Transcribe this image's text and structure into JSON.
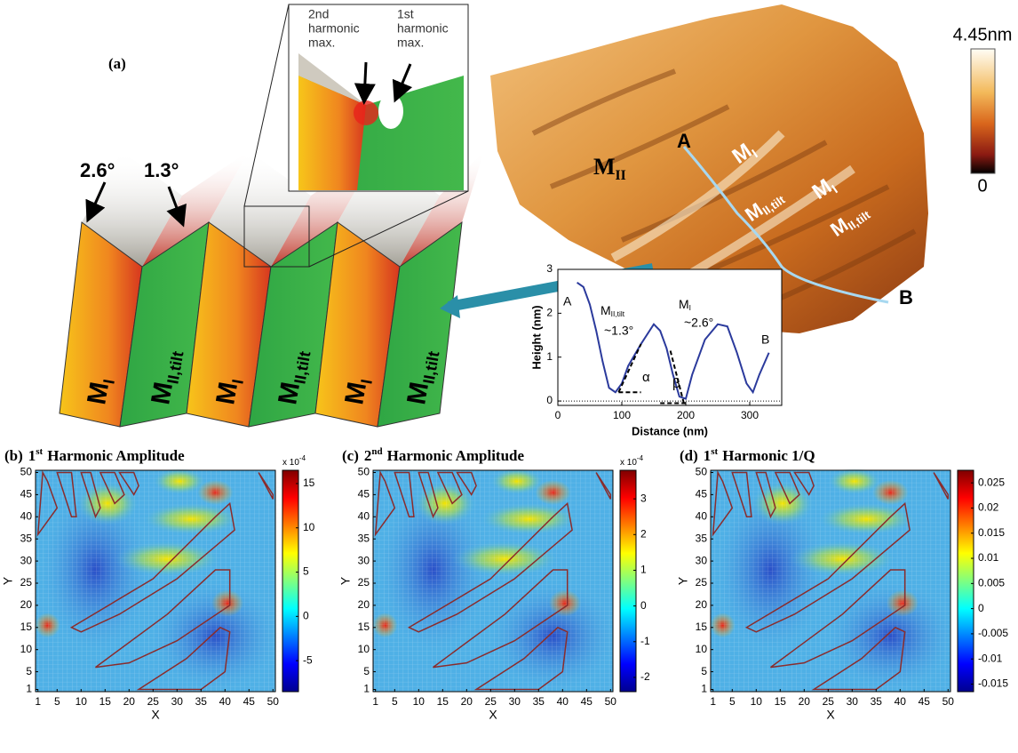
{
  "panel_a": {
    "label": "(a)",
    "angle_1": "2.6°",
    "angle_2": "1.3°",
    "harmonic_2": [
      "2nd",
      "harmonic",
      "max."
    ],
    "harmonic_1": [
      "1st",
      "harmonic",
      "max."
    ],
    "domains": [
      {
        "main": "M",
        "sub": "I"
      },
      {
        "main": "M",
        "sub": "II,tilt"
      },
      {
        "main": "M",
        "sub": "I"
      },
      {
        "main": "M",
        "sub": "II,tilt"
      },
      {
        "main": "M",
        "sub": "I"
      },
      {
        "main": "M",
        "sub": "II,tilt"
      }
    ]
  },
  "afm": {
    "colorbar_max": "4.45nm",
    "colorbar_min": "0",
    "point_a": "A",
    "point_b": "B",
    "labels": [
      {
        "main": "M",
        "sub": "II"
      },
      {
        "main": "M",
        "sub": "I"
      },
      {
        "main": "M",
        "sub": "II,tilt"
      },
      {
        "main": "M",
        "sub": "I"
      },
      {
        "main": "M",
        "sub": "II,tilt"
      }
    ]
  },
  "chart_data": [
    {
      "type": "line",
      "x_label": "Distance  (nm)",
      "y_label": "Height (nm)",
      "x": [
        30,
        40,
        50,
        60,
        70,
        80,
        90,
        100,
        110,
        130,
        150,
        160,
        170,
        180,
        190,
        200,
        210,
        230,
        250,
        265,
        280,
        295,
        305,
        315,
        330
      ],
      "series": [
        {
          "color": "#2b3a9c",
          "values": [
            2.7,
            2.6,
            2.2,
            1.6,
            0.9,
            0.3,
            0.2,
            0.4,
            0.8,
            1.3,
            1.75,
            1.6,
            1.2,
            0.6,
            0.1,
            0.05,
            0.6,
            1.4,
            1.75,
            1.7,
            1.1,
            0.4,
            0.2,
            0.6,
            1.1
          ]
        }
      ],
      "xlim": [
        0,
        350
      ],
      "ylim": [
        -0.1,
        3
      ],
      "xticks": [
        0,
        100,
        200,
        300
      ],
      "yticks": [
        0,
        1,
        2,
        3
      ],
      "annotations": {
        "start": "A",
        "end": "B",
        "tilt_label": {
          "main": "M",
          "sub": "II,tilt"
        },
        "tilt_angle": "~1.3°",
        "mi_label": {
          "main": "M",
          "sub": "I"
        },
        "mi_angle": "~2.6°",
        "alpha": "α",
        "beta": "β"
      }
    },
    {
      "type": "heatmap",
      "title": {
        "label": "(b)",
        "num": "1",
        "sup": "st",
        "text": "Harmonic Amplitude"
      },
      "x_label": "X",
      "y_label": "Y",
      "xlim": [
        0.5,
        50.5
      ],
      "ylim": [
        0.5,
        50.5
      ],
      "xticks": [
        1,
        5,
        10,
        15,
        20,
        25,
        30,
        35,
        40,
        45,
        50
      ],
      "yticks": [
        1,
        5,
        10,
        15,
        20,
        25,
        30,
        35,
        40,
        45,
        50
      ],
      "colorbar": {
        "exponent": {
          "base": "x 10",
          "sup": "-4"
        },
        "lim": [
          -8.5,
          16.5
        ],
        "ticks": [
          -5,
          0,
          5,
          10,
          15
        ]
      }
    },
    {
      "type": "heatmap",
      "title": {
        "label": "(c)",
        "num": "2",
        "sup": "nd",
        "text": "Harmonic Amplitude"
      },
      "x_label": "X",
      "y_label": "Y",
      "xlim": [
        0.5,
        50.5
      ],
      "ylim": [
        0.5,
        50.5
      ],
      "xticks": [
        1,
        5,
        10,
        15,
        20,
        25,
        30,
        35,
        40,
        45,
        50
      ],
      "yticks": [
        1,
        5,
        10,
        15,
        20,
        25,
        30,
        35,
        40,
        45,
        50
      ],
      "colorbar": {
        "exponent": {
          "base": "x 10",
          "sup": "-4"
        },
        "lim": [
          -2.4,
          3.8
        ],
        "ticks": [
          -2,
          -1,
          0,
          1,
          2,
          3
        ]
      }
    },
    {
      "type": "heatmap",
      "title": {
        "label": "(d)",
        "num": "1",
        "sup": "st",
        "text": "Harmonic 1/Q"
      },
      "x_label": "X",
      "y_label": "Y",
      "xlim": [
        0.5,
        50.5
      ],
      "ylim": [
        0.5,
        50.5
      ],
      "xticks": [
        1,
        5,
        10,
        15,
        20,
        25,
        30,
        35,
        40,
        45,
        50
      ],
      "yticks": [
        1,
        5,
        10,
        15,
        20,
        25,
        30,
        35,
        40,
        45,
        50
      ],
      "colorbar": {
        "lim": [
          -0.0165,
          0.0275
        ],
        "ticks": [
          -0.015,
          -0.01,
          -0.005,
          0,
          0.005,
          0.01,
          0.015,
          0.02,
          0.025
        ]
      }
    }
  ]
}
